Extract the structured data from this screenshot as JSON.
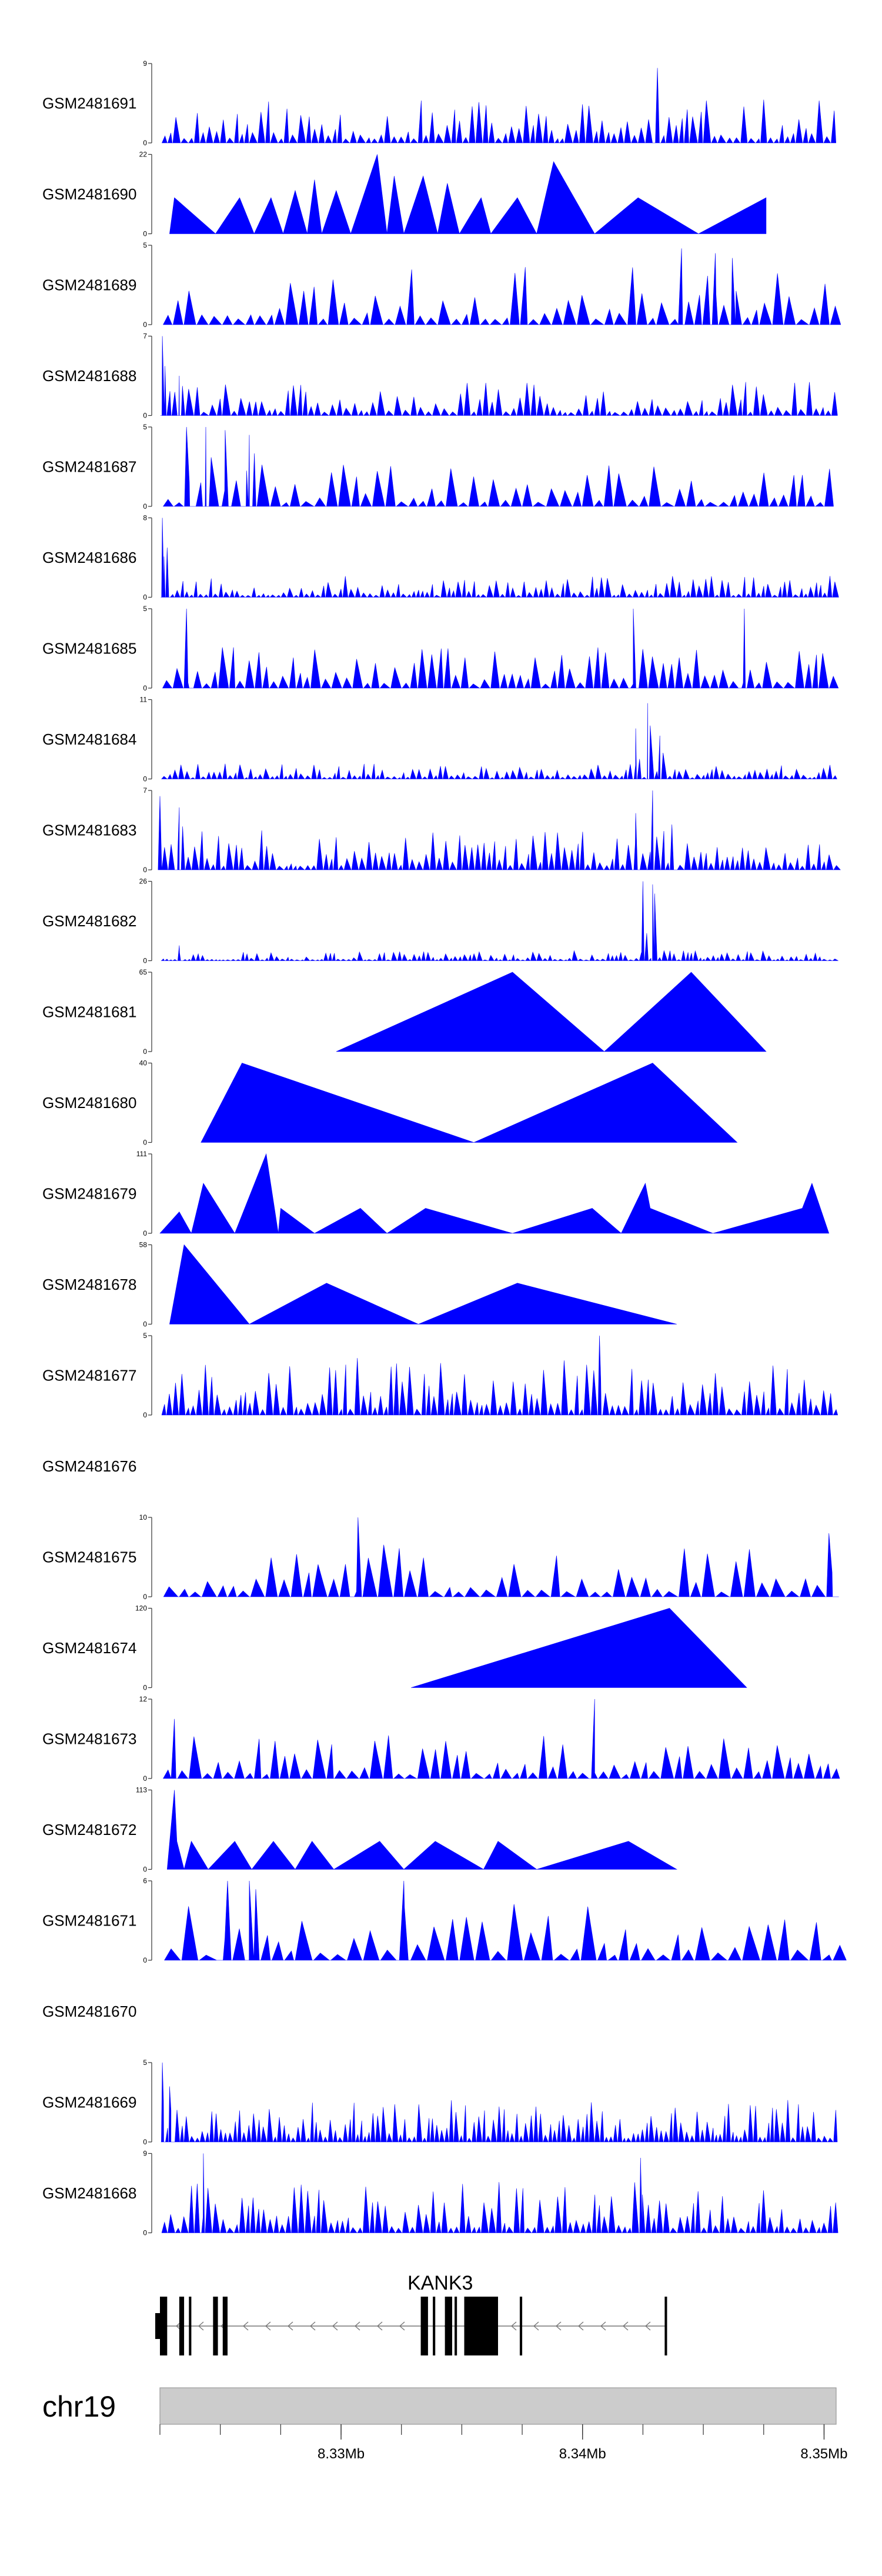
{
  "chart_data": {
    "type": "area",
    "title": "",
    "chromosome": "chr19",
    "xlim": [
      8.3225,
      8.3505
    ],
    "x_ticks": [
      8.33,
      8.34,
      8.35
    ],
    "x_tick_labels": [
      "8.33Mb",
      "8.34Mb",
      "8.35Mb"
    ],
    "fill_color": "#0000ff",
    "gene": {
      "name": "KANK3",
      "strand": "-",
      "start": 8.3225,
      "end": 8.3434,
      "exons": [
        [
          8.3225,
          8.3228
        ],
        [
          8.3233,
          8.3235
        ],
        [
          8.3237,
          8.3238
        ],
        [
          8.3247,
          8.3249
        ],
        [
          8.3251,
          8.3253
        ],
        [
          8.3333,
          8.3336
        ],
        [
          8.3338,
          8.3339
        ],
        [
          8.3343,
          8.3346
        ],
        [
          8.3347,
          8.3348
        ],
        [
          8.3351,
          8.3365
        ],
        [
          8.3374,
          8.3375
        ],
        [
          8.3434,
          8.3435
        ]
      ]
    },
    "tracks": [
      {
        "name": "GSM2481691",
        "ylim": [
          0,
          9
        ],
        "ytick_labels": [
          "0",
          "9"
        ],
        "seed": 11,
        "spacing": 0.1,
        "base": 3,
        "peaks": [
          [
            8.3431,
            8.5
          ]
        ]
      },
      {
        "name": "GSM2481690",
        "ylim": [
          0,
          22
        ],
        "ytick_labels": [
          "0",
          "22"
        ],
        "points": [
          [
            8.3229,
            0
          ],
          [
            8.3231,
            10
          ],
          [
            8.3248,
            0
          ],
          [
            8.3258,
            10
          ],
          [
            8.3264,
            0
          ],
          [
            8.3271,
            10
          ],
          [
            8.3276,
            0
          ],
          [
            8.3281,
            12
          ],
          [
            8.3286,
            0
          ],
          [
            8.3289,
            15
          ],
          [
            8.3292,
            0
          ],
          [
            8.3298,
            12
          ],
          [
            8.3304,
            0
          ],
          [
            8.3315,
            22
          ],
          [
            8.3319,
            0
          ],
          [
            8.3322,
            16
          ],
          [
            8.3326,
            0
          ],
          [
            8.3334,
            16
          ],
          [
            8.334,
            0
          ],
          [
            8.3344,
            14
          ],
          [
            8.3349,
            0
          ],
          [
            8.3358,
            10
          ],
          [
            8.3362,
            0
          ],
          [
            8.3373,
            10
          ],
          [
            8.3381,
            0
          ],
          [
            8.3388,
            20
          ],
          [
            8.3405,
            0
          ],
          [
            8.3423,
            10
          ],
          [
            8.3448,
            0
          ],
          [
            8.3476,
            10
          ]
        ]
      },
      {
        "name": "GSM2481689",
        "ylim": [
          0,
          5
        ],
        "ytick_labels": [
          "0",
          "5"
        ],
        "seed": 23,
        "spacing": 0.16,
        "base": 2.2,
        "peaks": [
          [
            8.3441,
            4.8
          ],
          [
            8.3455,
            4.5
          ],
          [
            8.3462,
            4.2
          ]
        ]
      },
      {
        "name": "GSM2481688",
        "ylim": [
          0,
          7
        ],
        "ytick_labels": [
          "0",
          "7"
        ],
        "seed": 31,
        "spacing": 0.1,
        "base": 1.8,
        "peaks": [
          [
            8.3226,
            7
          ],
          [
            8.3233,
            3.5
          ]
        ]
      },
      {
        "name": "GSM2481687",
        "ylim": [
          0,
          5
        ],
        "ytick_labels": [
          "0",
          "5"
        ],
        "seed": 47,
        "spacing": 0.16,
        "base": 1.6,
        "peaks": [
          [
            8.3236,
            5
          ],
          [
            8.3244,
            5
          ],
          [
            8.3252,
            4.8
          ],
          [
            8.3262,
            4.5
          ]
        ]
      },
      {
        "name": "GSM2481686",
        "ylim": [
          0,
          8
        ],
        "ytick_labels": [
          "0",
          "8"
        ],
        "seed": 53,
        "spacing": 0.08,
        "base": 1.3,
        "peaks": [
          [
            8.3226,
            8
          ],
          [
            8.3228,
            5
          ]
        ]
      },
      {
        "name": "GSM2481685",
        "ylim": [
          0,
          5
        ],
        "ytick_labels": [
          "0",
          "5"
        ],
        "seed": 61,
        "spacing": 0.13,
        "base": 1.7,
        "peaks": [
          [
            8.3236,
            5
          ],
          [
            8.3421,
            5
          ],
          [
            8.3467,
            5
          ]
        ]
      },
      {
        "name": "GSM2481684",
        "ylim": [
          0,
          11
        ],
        "ytick_labels": [
          "0",
          "11"
        ],
        "seed": 71,
        "spacing": 0.08,
        "base": 1.3,
        "peaks": [
          [
            8.3427,
            10.5
          ],
          [
            8.3422,
            7
          ],
          [
            8.3432,
            6
          ]
        ]
      },
      {
        "name": "GSM2481683",
        "ylim": [
          0,
          7
        ],
        "ytick_labels": [
          "0",
          "7"
        ],
        "seed": 83,
        "spacing": 0.09,
        "base": 2.2,
        "peaks": [
          [
            8.3225,
            6.5
          ],
          [
            8.3233,
            5.5
          ],
          [
            8.3429,
            7
          ],
          [
            8.3422,
            5
          ],
          [
            8.3437,
            4
          ]
        ]
      },
      {
        "name": "GSM2481682",
        "ylim": [
          0,
          26
        ],
        "ytick_labels": [
          "0",
          "26"
        ],
        "seed": 97,
        "spacing": 0.07,
        "base": 2.0,
        "peaks": [
          [
            8.3425,
            26
          ],
          [
            8.3429,
            25
          ],
          [
            8.3233,
            5
          ]
        ]
      },
      {
        "name": "GSM2481681",
        "ylim": [
          0,
          65
        ],
        "ytick_labels": [
          "0",
          "65"
        ],
        "points": [
          [
            8.3298,
            0
          ],
          [
            8.3371,
            65
          ],
          [
            8.3409,
            0
          ],
          [
            8.3445,
            65
          ],
          [
            8.3476,
            0
          ]
        ]
      },
      {
        "name": "GSM2481680",
        "ylim": [
          0,
          40
        ],
        "ytick_labels": [
          "0",
          "40"
        ],
        "points": [
          [
            8.3242,
            0
          ],
          [
            8.3259,
            40
          ],
          [
            8.3355,
            0
          ],
          [
            8.3429,
            40
          ],
          [
            8.3464,
            0
          ]
        ]
      },
      {
        "name": "GSM2481679",
        "ylim": [
          0,
          111
        ],
        "ytick_labels": [
          "0",
          "111"
        ],
        "points": [
          [
            8.3225,
            0
          ],
          [
            8.3233,
            30
          ],
          [
            8.3238,
            0
          ],
          [
            8.3243,
            70
          ],
          [
            8.3256,
            0
          ],
          [
            8.3269,
            111
          ],
          [
            8.3274,
            0
          ],
          [
            8.3275,
            35
          ],
          [
            8.3289,
            0
          ],
          [
            8.3308,
            35
          ],
          [
            8.3319,
            0
          ],
          [
            8.3335,
            35
          ],
          [
            8.3371,
            0
          ],
          [
            8.3404,
            35
          ],
          [
            8.3416,
            0
          ],
          [
            8.3426,
            70
          ],
          [
            8.3428,
            35
          ],
          [
            8.3454,
            0
          ],
          [
            8.3491,
            35
          ],
          [
            8.3495,
            70
          ],
          [
            8.3502,
            0
          ]
        ]
      },
      {
        "name": "GSM2481678",
        "ylim": [
          0,
          58
        ],
        "ytick_labels": [
          "0",
          "58"
        ],
        "points": [
          [
            8.3229,
            0
          ],
          [
            8.3235,
            58
          ],
          [
            8.3262,
            0
          ],
          [
            8.3294,
            30
          ],
          [
            8.3332,
            0
          ],
          [
            8.3373,
            30
          ],
          [
            8.3439,
            0
          ]
        ]
      },
      {
        "name": "GSM2481677",
        "ylim": [
          0,
          5
        ],
        "ytick_labels": [
          "0",
          "5"
        ],
        "seed": 131,
        "spacing": 0.09,
        "base": 2.2,
        "peaks": [
          [
            8.3407,
            5
          ]
        ]
      },
      {
        "name": "GSM2481676",
        "ylim": [
          0,
          1
        ],
        "ytick_labels": [
          "",
          ""
        ],
        "empty": true
      },
      {
        "name": "GSM2481675",
        "ylim": [
          0,
          10
        ],
        "ytick_labels": [
          "0",
          "10"
        ],
        "seed": 151,
        "spacing": 0.18,
        "base": 4,
        "peaks": [
          [
            8.3307,
            10
          ],
          [
            8.3502,
            8
          ]
        ]
      },
      {
        "name": "GSM2481674",
        "ylim": [
          0,
          120
        ],
        "ytick_labels": [
          "0",
          "120"
        ],
        "points": [
          [
            8.3329,
            0
          ],
          [
            8.3436,
            120
          ],
          [
            8.3468,
            0
          ]
        ]
      },
      {
        "name": "GSM2481673",
        "ylim": [
          0,
          12
        ],
        "ytick_labels": [
          "0",
          "12"
        ],
        "seed": 173,
        "spacing": 0.16,
        "base": 4,
        "peaks": [
          [
            8.3405,
            12
          ],
          [
            8.3231,
            9
          ]
        ]
      },
      {
        "name": "GSM2481672",
        "ylim": [
          0,
          113
        ],
        "ytick_labels": [
          "0",
          "113"
        ],
        "points": [
          [
            8.3228,
            0
          ],
          [
            8.3231,
            113
          ],
          [
            8.3232,
            40
          ],
          [
            8.3235,
            0
          ],
          [
            8.3238,
            40
          ],
          [
            8.3245,
            0
          ],
          [
            8.3256,
            40
          ],
          [
            8.3263,
            0
          ],
          [
            8.3272,
            40
          ],
          [
            8.3281,
            0
          ],
          [
            8.3288,
            40
          ],
          [
            8.3297,
            0
          ],
          [
            8.3316,
            40
          ],
          [
            8.3326,
            0
          ],
          [
            8.3339,
            40
          ],
          [
            8.3359,
            0
          ],
          [
            8.3365,
            40
          ],
          [
            8.3381,
            0
          ],
          [
            8.3419,
            40
          ],
          [
            8.3439,
            0
          ]
        ]
      },
      {
        "name": "GSM2481671",
        "ylim": [
          0,
          6
        ],
        "ytick_labels": [
          "0",
          "6"
        ],
        "seed": 193,
        "spacing": 0.22,
        "base": 2.6,
        "peaks": [
          [
            8.3253,
            6
          ],
          [
            8.3262,
            6
          ],
          [
            8.3326,
            6
          ]
        ]
      },
      {
        "name": "GSM2481670",
        "ylim": [
          0,
          1
        ],
        "ytick_labels": [
          "",
          ""
        ],
        "empty": true
      },
      {
        "name": "GSM2481669",
        "ylim": [
          0,
          5
        ],
        "ytick_labels": [
          "0",
          "5"
        ],
        "seed": 211,
        "spacing": 0.07,
        "base": 1.6,
        "peaks": [
          [
            8.3226,
            5
          ],
          [
            8.3229,
            3.5
          ]
        ]
      },
      {
        "name": "GSM2481668",
        "ylim": [
          0,
          9
        ],
        "ytick_labels": [
          "0",
          "9"
        ],
        "seed": 223,
        "spacing": 0.09,
        "base": 3.5,
        "peaks": [
          [
            8.3243,
            9
          ],
          [
            8.3424,
            8.5
          ]
        ]
      }
    ]
  }
}
